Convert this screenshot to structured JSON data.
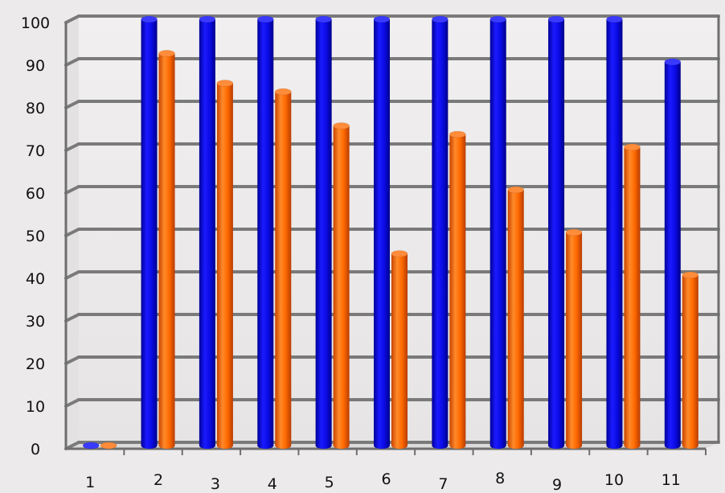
{
  "chart_data": {
    "type": "bar",
    "title": "",
    "xlabel": "",
    "ylabel": "",
    "categories": [
      "1",
      "2",
      "3",
      "4",
      "5",
      "6",
      "7",
      "8",
      "9",
      "10",
      "11"
    ],
    "series": [
      {
        "values": [
          0,
          100,
          100,
          100,
          100,
          100,
          100,
          100,
          100,
          100,
          90
        ],
        "color": "#0a0ae6"
      },
      {
        "values": [
          0,
          92,
          85,
          83,
          75,
          45,
          73,
          60,
          50,
          70,
          40
        ],
        "color": "#ff6a00"
      }
    ],
    "ylim": [
      0,
      100
    ],
    "yticks": [
      "0",
      "10",
      "20",
      "30",
      "40",
      "50",
      "60",
      "70",
      "80",
      "90",
      "100"
    ],
    "grid": true,
    "legend": "none",
    "style": "3d-cylinder"
  }
}
